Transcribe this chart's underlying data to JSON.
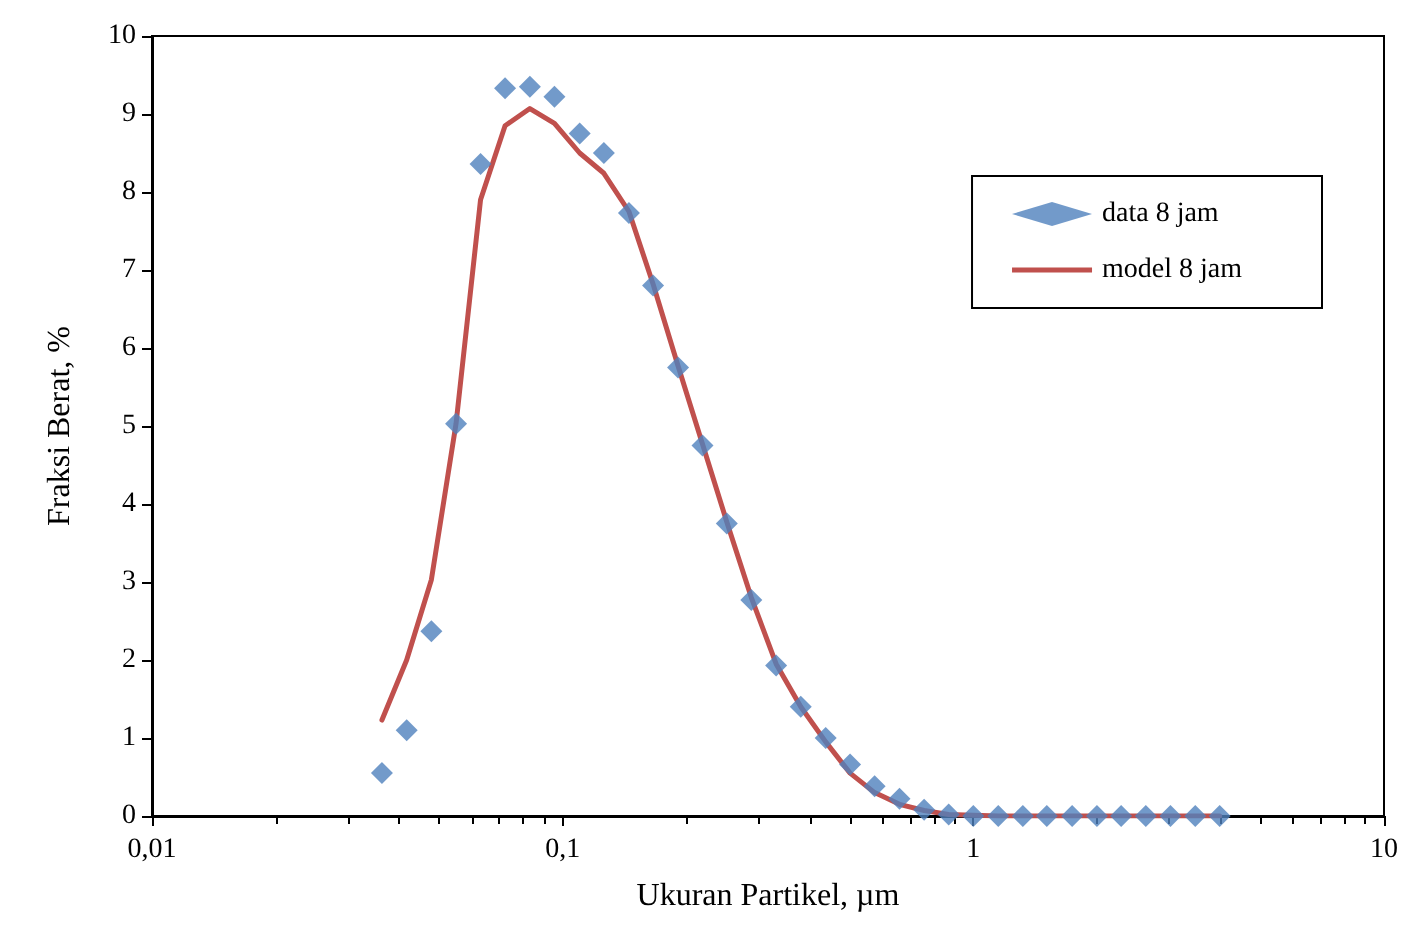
{
  "chart_data": {
    "type": "scatter",
    "xlabel": "Ukuran Partikel, µm",
    "ylabel": "Fraksi Berat, %",
    "x": [
      0.0363,
      0.0417,
      0.0479,
      0.055,
      0.0631,
      0.0724,
      0.0832,
      0.0955,
      0.11,
      0.126,
      0.145,
      0.166,
      0.191,
      0.219,
      0.251,
      0.288,
      0.331,
      0.38,
      0.437,
      0.501,
      0.575,
      0.661,
      0.759,
      0.871,
      1.0,
      1.15,
      1.32,
      1.51,
      1.74,
      2.0,
      2.29,
      2.63,
      3.02,
      3.47,
      3.98
    ],
    "series": [
      {
        "name": "data 8 jam",
        "type": "scatter",
        "marker": "diamond",
        "color": "#4f81bd",
        "values": [
          0.55,
          1.1,
          2.37,
          5.03,
          8.36,
          9.33,
          9.35,
          9.22,
          8.75,
          8.5,
          7.73,
          6.8,
          5.75,
          4.75,
          3.75,
          2.77,
          1.93,
          1.4,
          1.0,
          0.66,
          0.38,
          0.22,
          0.08,
          0.02,
          0,
          0,
          0,
          0,
          0,
          0,
          0,
          0,
          0,
          0,
          0
        ]
      },
      {
        "name": "model 8 jam",
        "type": "line",
        "marker": "none",
        "line_style": "solid",
        "color": "#c0504d",
        "values": [
          1.23,
          2.0,
          3.03,
          5.03,
          7.9,
          8.85,
          9.07,
          8.88,
          8.5,
          8.24,
          7.75,
          6.82,
          5.77,
          4.77,
          3.77,
          2.8,
          1.95,
          1.4,
          0.95,
          0.55,
          0.3,
          0.15,
          0.07,
          0.02,
          0.01,
          0,
          0,
          0,
          0,
          0,
          0,
          0,
          0,
          0,
          0
        ]
      }
    ],
    "log": "x",
    "xlim": [
      0.01,
      10
    ],
    "xticks": [
      {
        "value": 0.01,
        "label": "0,01"
      },
      {
        "value": 0.1,
        "label": "0,1"
      },
      1,
      10
    ],
    "ylim": [
      0,
      10
    ],
    "yticks": [
      0,
      1,
      2,
      3,
      4,
      5,
      6,
      7,
      8,
      9,
      10
    ],
    "grid": false,
    "legend": "top right"
  }
}
